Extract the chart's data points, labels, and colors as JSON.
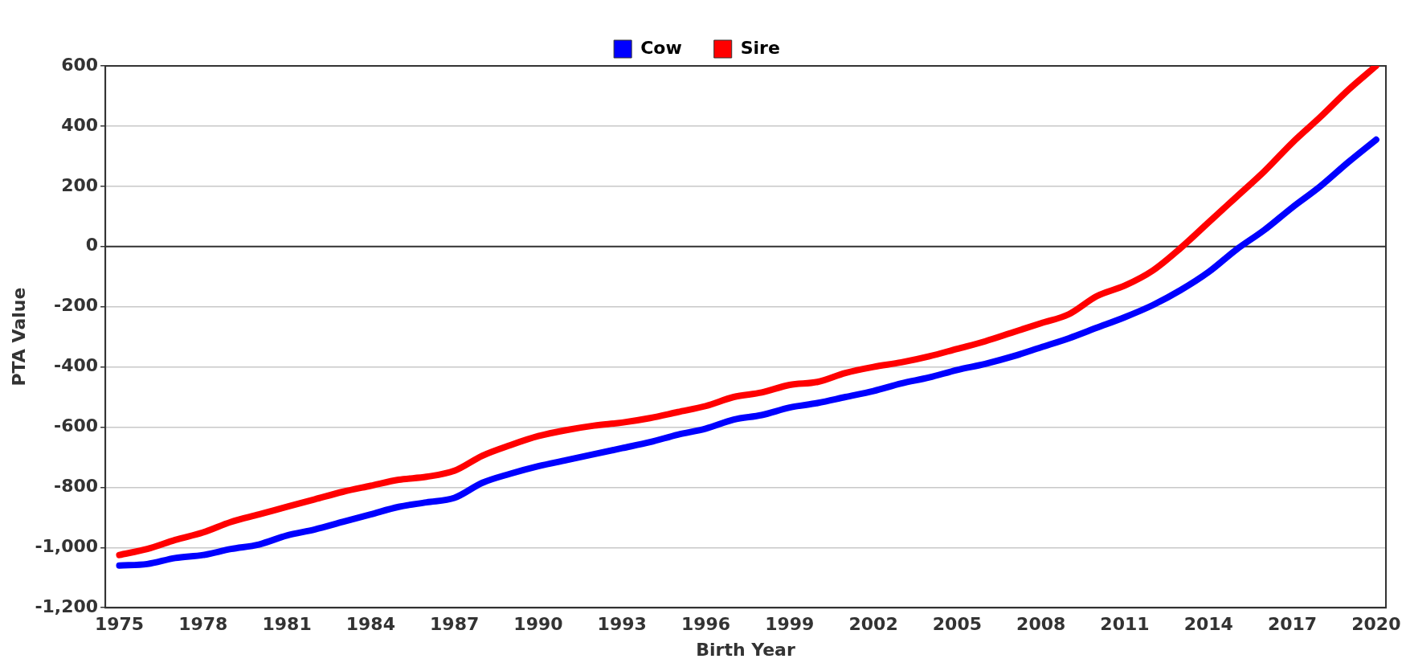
{
  "chart_data": {
    "type": "line",
    "xlabel": "Birth Year",
    "ylabel": "PTA Value",
    "legend": "top",
    "grid": "y",
    "line_style": "solid",
    "marker": "none",
    "x": [
      1975,
      1976,
      1977,
      1978,
      1979,
      1980,
      1981,
      1982,
      1983,
      1984,
      1985,
      1986,
      1987,
      1988,
      1989,
      1990,
      1991,
      1992,
      1993,
      1994,
      1995,
      1996,
      1997,
      1998,
      1999,
      2000,
      2001,
      2002,
      2003,
      2004,
      2005,
      2006,
      2007,
      2008,
      2009,
      2010,
      2011,
      2012,
      2013,
      2014,
      2015,
      2016,
      2017,
      2018,
      2019,
      2020
    ],
    "series": [
      {
        "name": "Cow",
        "color": "#0000ff",
        "values": [
          -1060,
          -1055,
          -1035,
          -1025,
          -1005,
          -990,
          -960,
          -940,
          -915,
          -890,
          -865,
          -850,
          -835,
          -785,
          -755,
          -730,
          -710,
          -690,
          -670,
          -650,
          -625,
          -605,
          -575,
          -560,
          -535,
          -520,
          -500,
          -480,
          -455,
          -435,
          -410,
          -390,
          -365,
          -335,
          -305,
          -270,
          -235,
          -195,
          -145,
          -85,
          -10,
          55,
          130,
          200,
          280,
          355
        ]
      },
      {
        "name": "Sire",
        "color": "#ff0000",
        "values": [
          -1025,
          -1005,
          -975,
          -950,
          -915,
          -890,
          -865,
          -840,
          -815,
          -795,
          -775,
          -765,
          -745,
          -695,
          -660,
          -630,
          -610,
          -595,
          -585,
          -570,
          -550,
          -530,
          -500,
          -485,
          -460,
          -450,
          -420,
          -400,
          -385,
          -365,
          -340,
          -315,
          -285,
          -255,
          -225,
          -165,
          -130,
          -80,
          -5,
          80,
          165,
          250,
          345,
          430,
          520,
          600
        ]
      }
    ],
    "xlim": [
      1974.5,
      2020.35
    ],
    "xticks": [
      1975,
      1978,
      1981,
      1984,
      1987,
      1990,
      1993,
      1996,
      1999,
      2002,
      2005,
      2008,
      2011,
      2014,
      2017,
      2020
    ],
    "ylim": [
      -1200,
      600
    ],
    "yticks": [
      {
        "value": -1200,
        "label": "-1,200"
      },
      {
        "value": -1000,
        "label": "-1,000"
      },
      -800,
      -600,
      -400,
      -200,
      0,
      200,
      400,
      600
    ],
    "ref_lines": [
      {
        "axis": "y",
        "value": 0,
        "color": "#333333"
      }
    ]
  }
}
